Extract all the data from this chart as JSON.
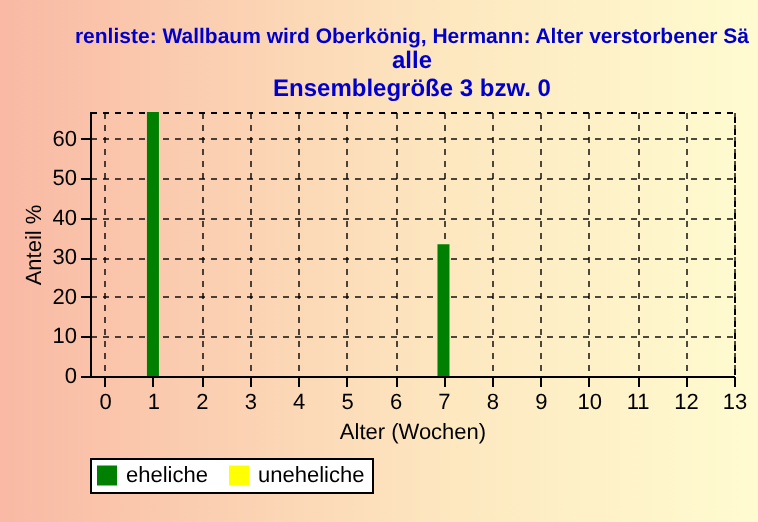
{
  "chart_data": {
    "type": "bar",
    "title": "renliste: Wallbaum wird Oberkönig, Hermann: Alter verstorbener Sä",
    "subtitle": "alle",
    "annotations": [
      "Ensemblegröße 3 bzw. 0"
    ],
    "xlabel": "Alter (Wochen)",
    "ylabel": "Anteil %",
    "x": [
      0,
      1,
      2,
      3,
      4,
      5,
      6,
      7,
      8,
      9,
      10,
      11,
      12,
      13
    ],
    "series": [
      {
        "name": "eheliche",
        "color": "#008000",
        "values": [
          0,
          66.7,
          0,
          0,
          0,
          0,
          0,
          33.3,
          0,
          0,
          0,
          0,
          0,
          0
        ]
      },
      {
        "name": "uneheliche",
        "color": "#ffff00",
        "values": [
          0,
          0,
          0,
          0,
          0,
          0,
          0,
          0,
          0,
          0,
          0,
          0,
          0,
          0
        ]
      }
    ],
    "xlim": [
      -0.3,
      13
    ],
    "xticks": [
      0,
      1,
      2,
      3,
      4,
      5,
      6,
      7,
      8,
      9,
      10,
      11,
      12,
      13
    ],
    "ylim": [
      0,
      66.7
    ],
    "yticks": [
      0,
      10,
      20,
      30,
      40,
      50,
      60
    ],
    "grid": true,
    "legend": "bottom"
  }
}
